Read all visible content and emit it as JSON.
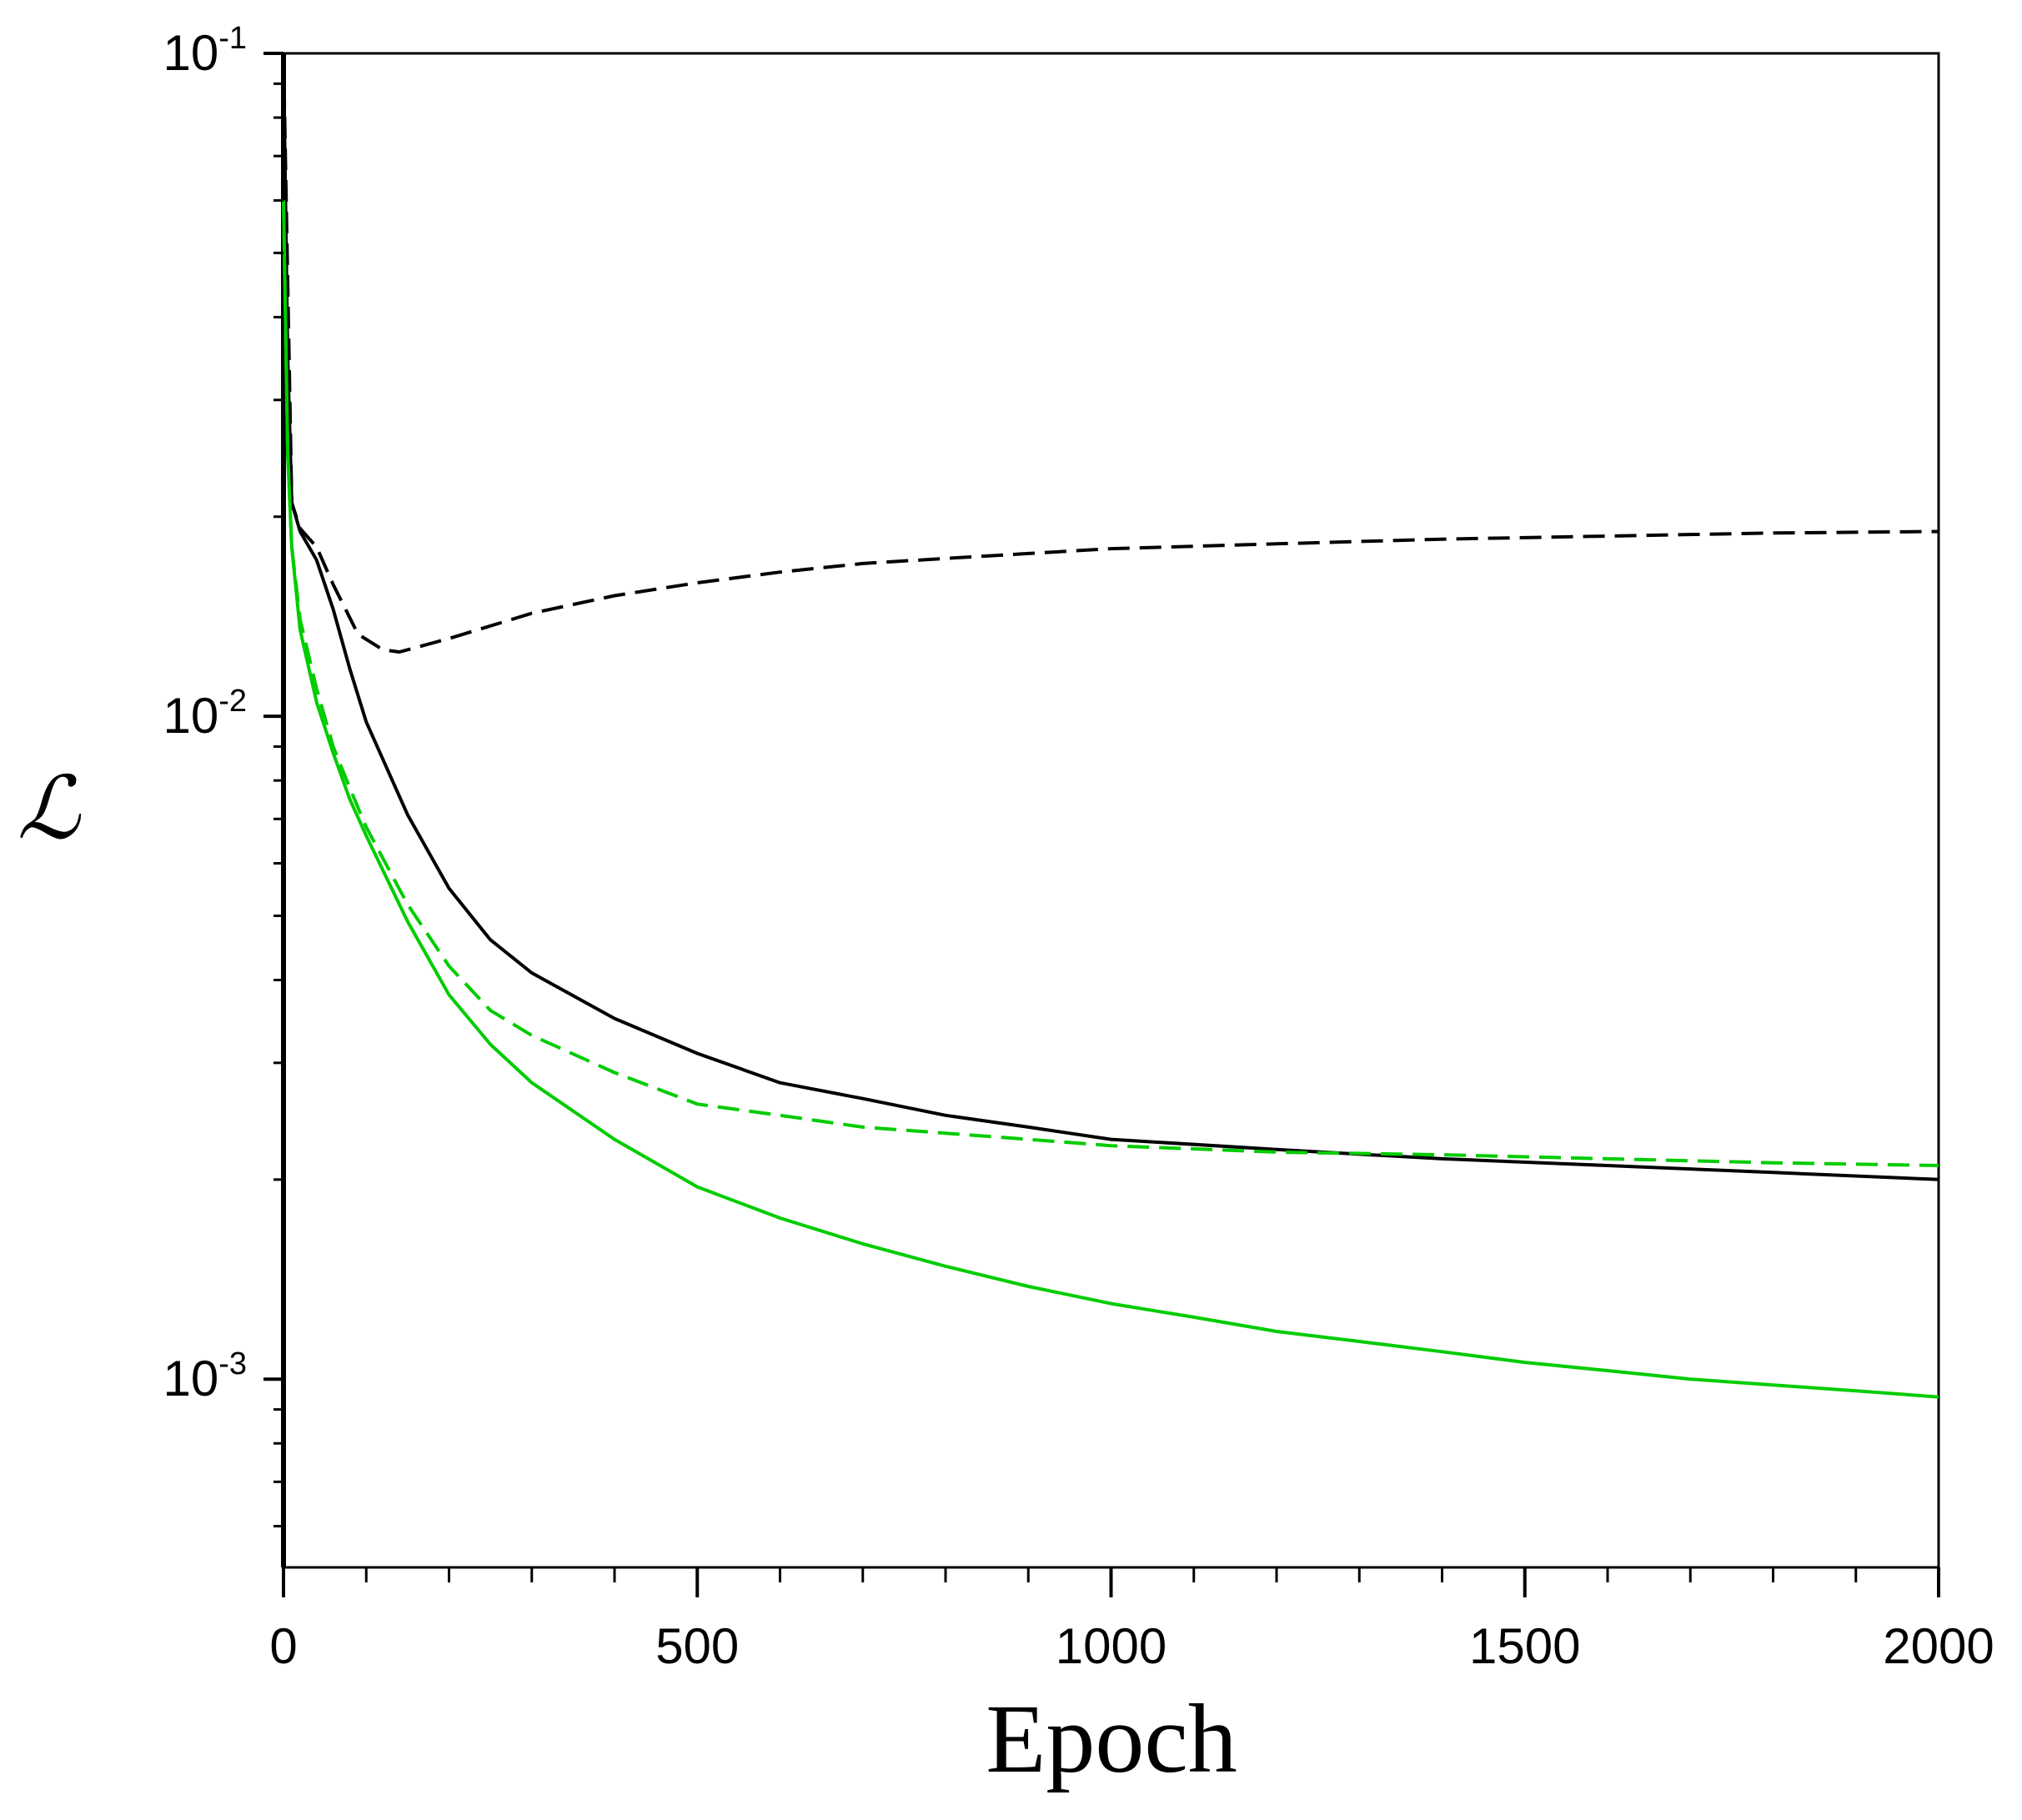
{
  "chart_data": {
    "type": "line",
    "title": "",
    "xlabel": "Epoch",
    "ylabel": "ℒ",
    "xlim": [
      0,
      2000
    ],
    "ylim": [
      0.00052,
      0.1
    ],
    "yscale": "log",
    "grid": false,
    "legend": "none",
    "x_ticks": [
      {
        "value": 0,
        "label": "0"
      },
      {
        "value": 500,
        "label": "500"
      },
      {
        "value": 1000,
        "label": "1000"
      },
      {
        "value": 1500,
        "label": "1500"
      },
      {
        "value": 2000,
        "label": "2000"
      }
    ],
    "y_ticks": [
      {
        "value": 0.1,
        "base": "10",
        "exp": "-1"
      },
      {
        "value": 0.01,
        "base": "10",
        "exp": "-2"
      },
      {
        "value": 0.001,
        "base": "10",
        "exp": "-3"
      }
    ],
    "series": [
      {
        "color": "#000000",
        "dash": "solid",
        "x": [
          0,
          5,
          10,
          20,
          40,
          60,
          80,
          100,
          150,
          200,
          250,
          300,
          400,
          500,
          600,
          700,
          800,
          900,
          1000,
          1200,
          1400,
          1600,
          1800,
          2000
        ],
        "y": [
          0.1,
          0.035,
          0.021,
          0.019,
          0.0172,
          0.0145,
          0.0118,
          0.0098,
          0.0071,
          0.0055,
          0.0046,
          0.0041,
          0.0035,
          0.0031,
          0.0028,
          0.00265,
          0.0025,
          0.0024,
          0.0023,
          0.00222,
          0.00215,
          0.0021,
          0.00205,
          0.002
        ]
      },
      {
        "color": "#000000",
        "dash": "dashed",
        "x": [
          0,
          10,
          20,
          40,
          60,
          90,
          120,
          140,
          200,
          300,
          400,
          500,
          600,
          700,
          800,
          900,
          1000,
          1200,
          1400,
          1600,
          1800,
          2000
        ],
        "y": [
          0.1,
          0.021,
          0.0192,
          0.018,
          0.0158,
          0.0133,
          0.0126,
          0.0125,
          0.0131,
          0.0143,
          0.0152,
          0.0159,
          0.0165,
          0.017,
          0.0173,
          0.0176,
          0.0179,
          0.0182,
          0.0185,
          0.0187,
          0.0189,
          0.019
        ]
      },
      {
        "color": "#00cc00",
        "dash": "solid",
        "x": [
          0,
          5,
          10,
          20,
          40,
          60,
          80,
          100,
          150,
          200,
          250,
          300,
          400,
          500,
          600,
          700,
          800,
          900,
          1000,
          1100,
          1200,
          1300,
          1400,
          1500,
          1600,
          1700,
          1800,
          1900,
          2000
        ],
        "y": [
          0.06,
          0.025,
          0.018,
          0.0135,
          0.0105,
          0.0088,
          0.0075,
          0.0066,
          0.0049,
          0.0038,
          0.0032,
          0.0028,
          0.0023,
          0.00195,
          0.00175,
          0.0016,
          0.00148,
          0.00138,
          0.0013,
          0.00124,
          0.00118,
          0.00114,
          0.0011,
          0.00106,
          0.00103,
          0.001,
          0.00098,
          0.00096,
          0.00094
        ]
      },
      {
        "color": "#00cc00",
        "dash": "dashed",
        "x": [
          0,
          5,
          10,
          20,
          40,
          60,
          80,
          100,
          150,
          200,
          250,
          300,
          400,
          500,
          600,
          700,
          800,
          900,
          1000,
          1200,
          1400,
          1600,
          1800,
          2000
        ],
        "y": [
          0.06,
          0.025,
          0.018,
          0.014,
          0.011,
          0.009,
          0.0078,
          0.0068,
          0.0052,
          0.0042,
          0.0036,
          0.0033,
          0.0029,
          0.0026,
          0.0025,
          0.0024,
          0.00235,
          0.0023,
          0.00225,
          0.0022,
          0.00218,
          0.00215,
          0.00212,
          0.0021
        ]
      }
    ]
  }
}
